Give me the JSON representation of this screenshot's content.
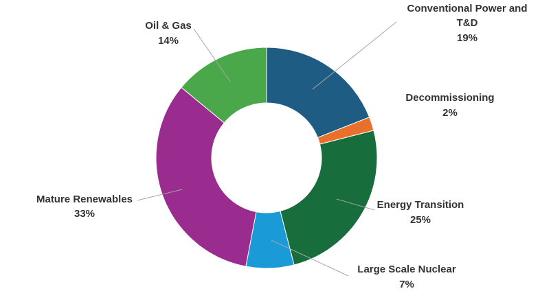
{
  "chart_data": {
    "type": "donut",
    "categories": [
      "Conventional Power and T&D",
      "Decommissioning",
      "Energy Transition",
      "Large Scale Nuclear",
      "Mature Renewables",
      "Oil & Gas"
    ],
    "values": [
      19,
      2,
      25,
      7,
      33,
      14
    ],
    "value_labels": [
      "19%",
      "2%",
      "25%",
      "7%",
      "33%",
      "14%"
    ],
    "colors": [
      "#1f5c84",
      "#e8702a",
      "#176d3c",
      "#1a9ad6",
      "#9a2c8f",
      "#4aa84b"
    ]
  }
}
